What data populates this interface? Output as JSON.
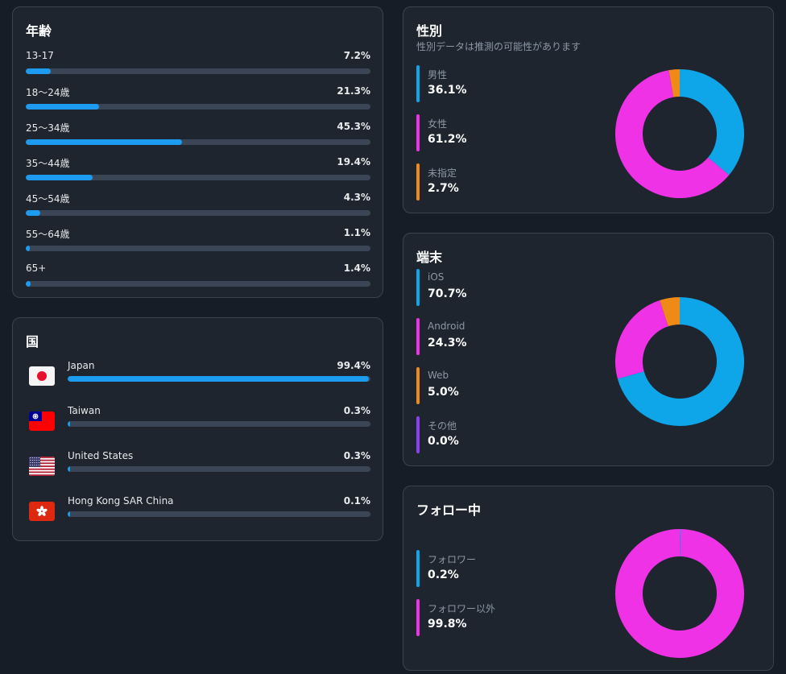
{
  "age": {
    "title": "年齢",
    "items": [
      {
        "label": "13-17",
        "value": "7.2%",
        "pct": 7.2
      },
      {
        "label": "18〜24歳",
        "value": "21.3%",
        "pct": 21.3
      },
      {
        "label": "25〜34歳",
        "value": "45.3%",
        "pct": 45.3
      },
      {
        "label": "35〜44歳",
        "value": "19.4%",
        "pct": 19.4
      },
      {
        "label": "45〜54歳",
        "value": "4.3%",
        "pct": 4.3
      },
      {
        "label": "55〜64歳",
        "value": "1.1%",
        "pct": 1.1
      },
      {
        "label": "65+",
        "value": "1.4%",
        "pct": 1.4
      }
    ]
  },
  "country": {
    "title": "国",
    "items": [
      {
        "label": "Japan",
        "value": "99.4%",
        "pct": 99.4,
        "flag": "japan-flag-icon"
      },
      {
        "label": "Taiwan",
        "value": "0.3%",
        "pct": 0.3,
        "flag": "taiwan-flag-icon"
      },
      {
        "label": "United States",
        "value": "0.3%",
        "pct": 0.3,
        "flag": "us-flag-icon"
      },
      {
        "label": "Hong Kong SAR China",
        "value": "0.1%",
        "pct": 0.1,
        "flag": "hongkong-flag-icon"
      }
    ]
  },
  "gender": {
    "title": "性別",
    "subtitle": "性別データは推測の可能性があります",
    "items": [
      {
        "label": "男性",
        "value": "36.1%",
        "pct": 36.1,
        "color": "#0ea5e9"
      },
      {
        "label": "女性",
        "value": "61.2%",
        "pct": 61.2,
        "color": "#f032e6"
      },
      {
        "label": "未指定",
        "value": "2.7%",
        "pct": 2.7,
        "color": "#f08a17"
      }
    ]
  },
  "device": {
    "title": "端末",
    "items": [
      {
        "label": "iOS",
        "value": "70.7%",
        "pct": 70.7,
        "color": "#0ea5e9"
      },
      {
        "label": "Android",
        "value": "24.3%",
        "pct": 24.3,
        "color": "#f032e6"
      },
      {
        "label": "Web",
        "value": "5.0%",
        "pct": 5.0,
        "color": "#f08a17"
      },
      {
        "label": "その他",
        "value": "0.0%",
        "pct": 0.0,
        "color": "#8b3ff0"
      }
    ]
  },
  "following": {
    "title": "フォロー中",
    "items": [
      {
        "label": "フォロワー",
        "value": "0.2%",
        "pct": 0.2,
        "color": "#0ea5e9"
      },
      {
        "label": "フォロワー以外",
        "value": "99.8%",
        "pct": 99.8,
        "color": "#f032e6"
      }
    ]
  },
  "colors": {
    "bar_fill": "#1d9bf0",
    "bar_track": "#3a4656",
    "card_bg": "#1f252f",
    "page_bg": "#161d26"
  }
}
